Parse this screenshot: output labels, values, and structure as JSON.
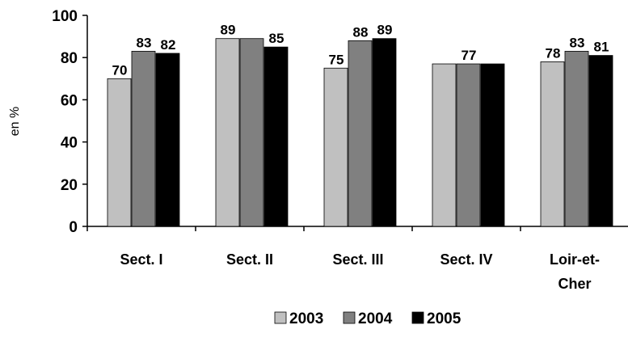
{
  "chart_data": {
    "type": "bar",
    "categories": [
      "Sect. I",
      "Sect. II",
      "Sect. III",
      "Sect. IV",
      "Loir-et-Cher"
    ],
    "category_lines": [
      [
        "Sect. I"
      ],
      [
        "Sect. II"
      ],
      [
        "Sect. III"
      ],
      [
        "Sect. IV"
      ],
      [
        "Loir-et-",
        "Cher"
      ]
    ],
    "series": [
      {
        "name": "2003",
        "values": [
          70,
          89,
          75,
          77,
          78
        ],
        "color": "#c0c0c0"
      },
      {
        "name": "2004",
        "values": [
          83,
          89,
          88,
          77,
          83
        ],
        "color": "#808080"
      },
      {
        "name": "2005",
        "values": [
          82,
          85,
          89,
          77,
          81
        ],
        "color": "#000000"
      }
    ],
    "data_labels": [
      [
        "70",
        "89",
        "75",
        "",
        "78"
      ],
      [
        "83",
        "",
        "88",
        "77",
        "83"
      ],
      [
        "82",
        "85",
        "89",
        "",
        "81"
      ]
    ],
    "ylabel": "en %",
    "ylim": [
      0,
      100
    ],
    "yticks": [
      0,
      20,
      40,
      60,
      80,
      100
    ],
    "grid": false,
    "legend": "bottom"
  }
}
